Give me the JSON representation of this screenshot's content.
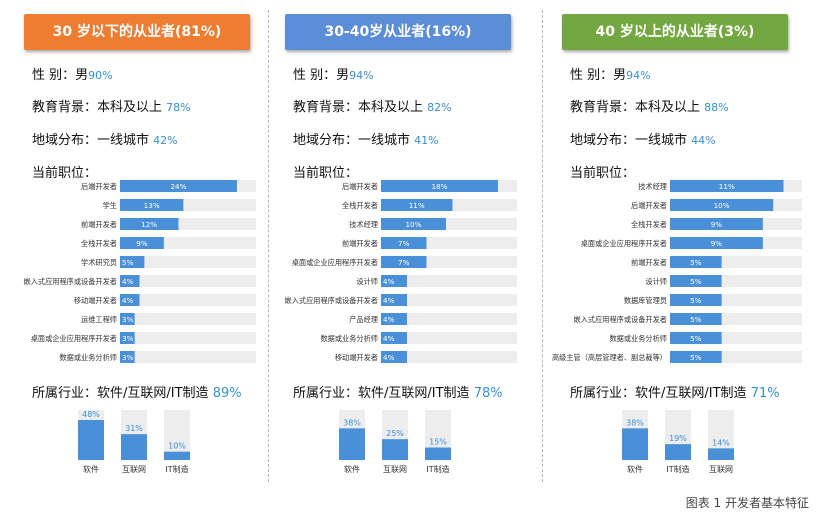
{
  "caption": "图表 1 开发者基本特征",
  "chart_data": [
    {
      "type": "bar",
      "title": "30 岁以下的从业者(81%)",
      "color": "#ee7d32",
      "gender_label": "性    别：男",
      "gender_value": "90%",
      "edu_label": "教育背景：本科及以上",
      "edu_value": "78%",
      "region_label": "地域分布：一线城市",
      "region_value": "42%",
      "positions_title": "当前职位：",
      "positions": {
        "categories": [
          "后端开发者",
          "学生",
          "前端开发者",
          "全栈开发者",
          "学术研究员",
          "嵌入式应用程序或设备开发者",
          "移动端开发者",
          "运维工程师",
          "桌面或企业应用程序开发者",
          "数据或业务分析师"
        ],
        "values": [
          24,
          13,
          12,
          9,
          5,
          4,
          4,
          3,
          3,
          3
        ],
        "labels": [
          "24%",
          "13%",
          "12%",
          "9%",
          "5%",
          "4%",
          "4%",
          "3%",
          "3%",
          "3%"
        ]
      },
      "industry_label": "所属行业：软件/互联网/IT制造",
      "industry_value": "89%",
      "industry": {
        "categories": [
          "软件",
          "互联网",
          "IT制造"
        ],
        "values": [
          48,
          31,
          10
        ],
        "labels": [
          "48%",
          "31%",
          "10%"
        ]
      }
    },
    {
      "type": "bar",
      "title": "30-40岁从业者(16%)",
      "color": "#5b8ed6",
      "gender_label": "性    别：男",
      "gender_value": "94%",
      "edu_label": "教育背景：本科及以上",
      "edu_value": "82%",
      "region_label": "地域分布：一线城市",
      "region_value": "41%",
      "positions_title": "当前职位：",
      "positions": {
        "categories": [
          "后端开发者",
          "全栈开发者",
          "技术经理",
          "前端开发者",
          "桌面或企业应用程序开发者",
          "设计师",
          "嵌入式应用程序或设备开发者",
          "产品经理",
          "数据或业务分析师",
          "移动端开发者"
        ],
        "values": [
          18,
          11,
          10,
          7,
          7,
          4,
          4,
          4,
          4,
          4
        ],
        "labels": [
          "18%",
          "11%",
          "10%",
          "7%",
          "7%",
          "4%",
          "4%",
          "4%",
          "4%",
          "4%"
        ]
      },
      "industry_label": "所属行业：软件/互联网/IT制造",
      "industry_value": "78%",
      "industry": {
        "categories": [
          "软件",
          "互联网",
          "IT制造"
        ],
        "values": [
          38,
          25,
          15
        ],
        "labels": [
          "38%",
          "25%",
          "15%"
        ]
      }
    },
    {
      "type": "bar",
      "title": "40 岁以上的从业者(3%)",
      "color": "#73a741",
      "gender_label": "性    别：男",
      "gender_value": "94%",
      "edu_label": "教育背景：本科及以上",
      "edu_value": "88%",
      "region_label": "地域分布：一线城市",
      "region_value": "44%",
      "positions_title": "当前职位：",
      "positions": {
        "categories": [
          "技术经理",
          "后端开发者",
          "全栈开发者",
          "桌面或企业应用程序开发者",
          "前端开发者",
          "设计师",
          "数据库管理员",
          "嵌入式应用程序或设备开发者",
          "数据或业务分析师",
          "高级主管（高层管理者、副总裁等）"
        ],
        "values": [
          11,
          10,
          9,
          9,
          5,
          5,
          5,
          5,
          5,
          5
        ],
        "labels": [
          "11%",
          "10%",
          "9%",
          "9%",
          "5%",
          "5%",
          "5%",
          "5%",
          "5%",
          "5%"
        ]
      },
      "industry_label": "所属行业：软件/互联网/IT制造",
      "industry_value": "71%",
      "industry": {
        "categories": [
          "软件",
          "IT制造",
          "互联网"
        ],
        "values": [
          38,
          19,
          14
        ],
        "labels": [
          "38%",
          "19%",
          "14%"
        ]
      }
    }
  ]
}
